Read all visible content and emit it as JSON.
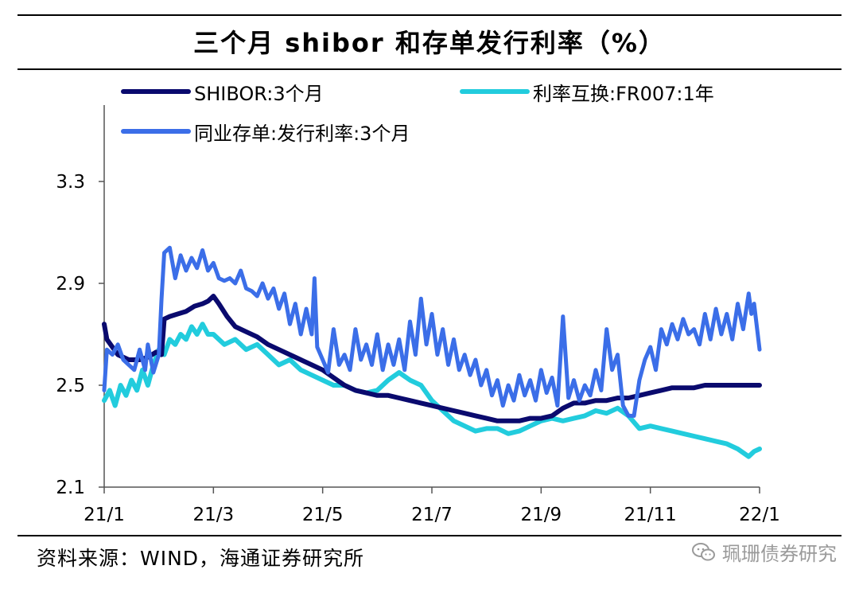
{
  "title": "三个月 shibor 和存单发行利率（%）",
  "source": "资料来源：WIND，海通证券研究所",
  "watermark": "珮珊债券研究",
  "watermark_icon": "wechat-icon",
  "chart_data": {
    "type": "line",
    "title": "三个月 shibor 和存单发行利率（%）",
    "xlabel": "",
    "ylabel": "",
    "x_tick_labels": [
      "21/1",
      "21/3",
      "21/5",
      "21/7",
      "21/9",
      "21/11",
      "22/1"
    ],
    "x_tick_months": [
      0,
      2,
      4,
      6,
      8,
      10,
      12
    ],
    "xlim": [
      0,
      12
    ],
    "y_ticks": [
      2.1,
      2.5,
      2.9,
      3.3
    ],
    "ylim": [
      2.1,
      3.6
    ],
    "grid": false,
    "legend_position": "top",
    "series": [
      {
        "name": "SHIBOR:3个月",
        "color": "#0a0a6e",
        "x": [
          0.0,
          0.05,
          0.25,
          0.45,
          0.65,
          0.8,
          0.95,
          1.05,
          1.1,
          1.2,
          1.35,
          1.5,
          1.65,
          1.8,
          1.9,
          2.0,
          2.1,
          2.25,
          2.4,
          2.6,
          2.8,
          3.0,
          3.2,
          3.4,
          3.6,
          3.8,
          4.0,
          4.2,
          4.4,
          4.6,
          4.8,
          5.0,
          5.2,
          5.4,
          5.6,
          5.8,
          6.0,
          6.2,
          6.4,
          6.6,
          6.8,
          7.0,
          7.2,
          7.4,
          7.6,
          7.8,
          8.0,
          8.2,
          8.4,
          8.6,
          8.8,
          9.0,
          9.2,
          9.4,
          9.6,
          9.8,
          10.0,
          10.2,
          10.4,
          10.6,
          10.8,
          11.0,
          11.2,
          11.4,
          11.6,
          11.8,
          12.0
        ],
        "y": [
          2.74,
          2.68,
          2.62,
          2.6,
          2.6,
          2.61,
          2.63,
          2.62,
          2.76,
          2.77,
          2.78,
          2.79,
          2.81,
          2.82,
          2.83,
          2.85,
          2.82,
          2.77,
          2.73,
          2.71,
          2.69,
          2.66,
          2.64,
          2.62,
          2.6,
          2.58,
          2.56,
          2.53,
          2.5,
          2.48,
          2.47,
          2.46,
          2.46,
          2.45,
          2.44,
          2.43,
          2.42,
          2.41,
          2.4,
          2.39,
          2.38,
          2.37,
          2.36,
          2.36,
          2.36,
          2.37,
          2.37,
          2.38,
          2.41,
          2.43,
          2.43,
          2.44,
          2.44,
          2.45,
          2.45,
          2.46,
          2.47,
          2.48,
          2.49,
          2.49,
          2.49,
          2.5,
          2.5,
          2.5,
          2.5,
          2.5,
          2.5
        ]
      },
      {
        "name": "利率互换:FR007:1年",
        "color": "#22ccdd",
        "x": [
          0.0,
          0.1,
          0.2,
          0.3,
          0.4,
          0.5,
          0.6,
          0.7,
          0.8,
          0.9,
          1.0,
          1.1,
          1.2,
          1.3,
          1.4,
          1.5,
          1.6,
          1.7,
          1.8,
          1.9,
          2.0,
          2.2,
          2.4,
          2.6,
          2.8,
          3.0,
          3.2,
          3.4,
          3.6,
          3.8,
          4.0,
          4.2,
          4.4,
          4.6,
          4.8,
          5.0,
          5.2,
          5.4,
          5.6,
          5.8,
          6.0,
          6.2,
          6.4,
          6.6,
          6.8,
          7.0,
          7.2,
          7.4,
          7.6,
          7.8,
          8.0,
          8.2,
          8.4,
          8.6,
          8.8,
          9.0,
          9.2,
          9.4,
          9.6,
          9.8,
          10.0,
          10.2,
          10.4,
          10.6,
          10.8,
          11.0,
          11.2,
          11.4,
          11.6,
          11.8,
          11.9,
          12.0
        ],
        "y": [
          2.44,
          2.48,
          2.42,
          2.5,
          2.46,
          2.52,
          2.48,
          2.56,
          2.5,
          2.58,
          2.64,
          2.62,
          2.68,
          2.66,
          2.7,
          2.68,
          2.73,
          2.7,
          2.74,
          2.7,
          2.7,
          2.66,
          2.68,
          2.64,
          2.66,
          2.62,
          2.58,
          2.6,
          2.56,
          2.54,
          2.52,
          2.5,
          2.5,
          2.48,
          2.47,
          2.48,
          2.52,
          2.55,
          2.52,
          2.5,
          2.44,
          2.4,
          2.36,
          2.34,
          2.32,
          2.33,
          2.33,
          2.31,
          2.32,
          2.34,
          2.36,
          2.37,
          2.36,
          2.37,
          2.38,
          2.4,
          2.39,
          2.41,
          2.38,
          2.33,
          2.34,
          2.33,
          2.32,
          2.31,
          2.3,
          2.29,
          2.28,
          2.27,
          2.25,
          2.22,
          2.24,
          2.25
        ]
      },
      {
        "name": "同业存单:发行利率:3个月",
        "color": "#3b6ee8",
        "x": [
          0.0,
          0.05,
          0.15,
          0.25,
          0.35,
          0.45,
          0.55,
          0.65,
          0.75,
          0.8,
          0.9,
          1.0,
          1.05,
          1.1,
          1.2,
          1.3,
          1.4,
          1.5,
          1.6,
          1.7,
          1.8,
          1.9,
          2.0,
          2.1,
          2.2,
          2.3,
          2.4,
          2.5,
          2.6,
          2.7,
          2.8,
          2.9,
          3.0,
          3.1,
          3.2,
          3.3,
          3.4,
          3.5,
          3.6,
          3.7,
          3.8,
          3.85,
          3.9,
          4.0,
          4.1,
          4.2,
          4.3,
          4.4,
          4.5,
          4.6,
          4.7,
          4.8,
          4.9,
          5.0,
          5.1,
          5.2,
          5.3,
          5.4,
          5.5,
          5.6,
          5.7,
          5.8,
          5.9,
          6.0,
          6.1,
          6.2,
          6.3,
          6.4,
          6.5,
          6.6,
          6.7,
          6.8,
          6.9,
          7.0,
          7.1,
          7.2,
          7.3,
          7.4,
          7.5,
          7.6,
          7.7,
          7.8,
          7.9,
          8.0,
          8.1,
          8.2,
          8.3,
          8.4,
          8.5,
          8.6,
          8.7,
          8.8,
          8.9,
          9.0,
          9.1,
          9.2,
          9.3,
          9.4,
          9.5,
          9.6,
          9.7,
          9.8,
          9.9,
          10.0,
          10.1,
          10.2,
          10.3,
          10.4,
          10.5,
          10.6,
          10.7,
          10.8,
          10.9,
          11.0,
          11.1,
          11.2,
          11.3,
          11.4,
          11.5,
          11.6,
          11.7,
          11.8,
          11.85,
          11.9,
          12.0
        ],
        "y": [
          2.48,
          2.64,
          2.62,
          2.66,
          2.6,
          2.58,
          2.56,
          2.64,
          2.56,
          2.66,
          2.55,
          2.62,
          2.84,
          3.02,
          3.04,
          2.92,
          3.01,
          2.95,
          3.0,
          2.96,
          3.03,
          2.95,
          2.98,
          2.92,
          2.91,
          2.92,
          2.9,
          2.95,
          2.88,
          2.87,
          2.85,
          2.9,
          2.84,
          2.88,
          2.8,
          2.86,
          2.74,
          2.82,
          2.7,
          2.8,
          2.7,
          2.92,
          2.65,
          2.6,
          2.55,
          2.72,
          2.58,
          2.62,
          2.56,
          2.72,
          2.6,
          2.66,
          2.58,
          2.7,
          2.56,
          2.66,
          2.58,
          2.68,
          2.56,
          2.75,
          2.62,
          2.84,
          2.66,
          2.78,
          2.62,
          2.72,
          2.58,
          2.68,
          2.56,
          2.62,
          2.54,
          2.6,
          2.5,
          2.56,
          2.46,
          2.52,
          2.42,
          2.5,
          2.44,
          2.54,
          2.46,
          2.52,
          2.44,
          2.56,
          2.47,
          2.53,
          2.42,
          2.77,
          2.45,
          2.52,
          2.44,
          2.5,
          2.46,
          2.56,
          2.48,
          2.72,
          2.56,
          2.62,
          2.42,
          2.38,
          2.38,
          2.52,
          2.6,
          2.65,
          2.56,
          2.72,
          2.66,
          2.74,
          2.68,
          2.76,
          2.7,
          2.72,
          2.66,
          2.78,
          2.68,
          2.8,
          2.7,
          2.78,
          2.68,
          2.82,
          2.72,
          2.86,
          2.78,
          2.82,
          2.64
        ]
      }
    ]
  }
}
